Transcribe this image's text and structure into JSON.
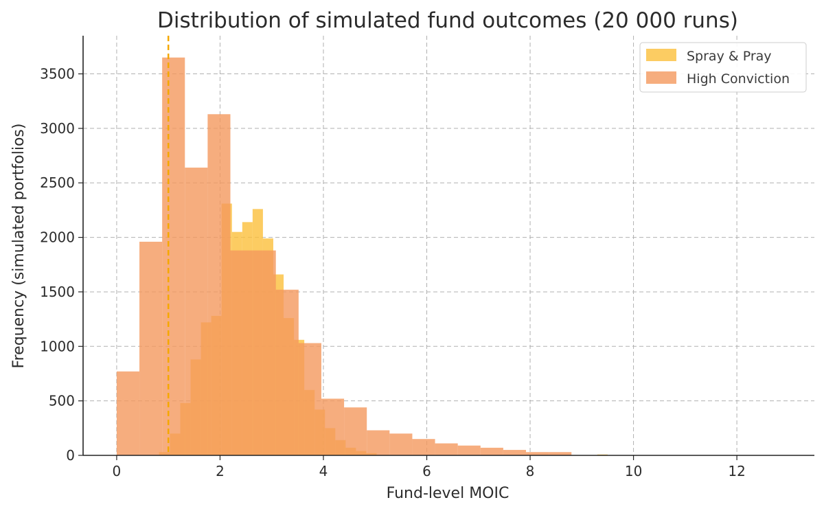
{
  "chart_data": {
    "type": "histogram",
    "title": "Distribution of simulated fund outcomes (20 000 runs)",
    "xlabel": "Fund-level MOIC",
    "ylabel": "Frequency (simulated portfolios)",
    "xlim": [
      -0.65,
      13.5
    ],
    "ylim": [
      0,
      3850
    ],
    "xticks": [
      0,
      2,
      4,
      6,
      8,
      10,
      12
    ],
    "yticks": [
      0,
      500,
      1000,
      1500,
      2000,
      2500,
      3000,
      3500
    ],
    "grid": true,
    "legend_position": "top-right",
    "reference_line": {
      "x": 1.0,
      "color": "#f5a800",
      "style": "dashed"
    },
    "series": [
      {
        "name": "Spray & Pray",
        "color": "#fbbf3b",
        "opacity": 0.8,
        "bins": [
          [
            0.82,
            0.99,
            30
          ],
          [
            0.99,
            1.03,
            30
          ],
          [
            1.03,
            1.23,
            200
          ],
          [
            1.23,
            1.43,
            480
          ],
          [
            1.43,
            1.63,
            880
          ],
          [
            1.63,
            1.83,
            1220
          ],
          [
            1.83,
            2.03,
            1280
          ],
          [
            2.03,
            2.23,
            2310
          ],
          [
            2.23,
            2.43,
            2050
          ],
          [
            2.43,
            2.63,
            2140
          ],
          [
            2.63,
            2.83,
            2260
          ],
          [
            2.83,
            3.03,
            1990
          ],
          [
            3.03,
            3.23,
            1660
          ],
          [
            3.23,
            3.43,
            1260
          ],
          [
            3.43,
            3.63,
            1060
          ],
          [
            3.63,
            3.83,
            600
          ],
          [
            3.83,
            4.03,
            420
          ],
          [
            4.03,
            4.23,
            250
          ],
          [
            4.23,
            4.43,
            140
          ],
          [
            4.43,
            4.63,
            70
          ],
          [
            4.63,
            4.83,
            40
          ],
          [
            4.83,
            5.03,
            20
          ],
          [
            9.3,
            9.5,
            8
          ]
        ]
      },
      {
        "name": "High Conviction",
        "color": "#f4995e",
        "opacity": 0.8,
        "bins": [
          [
            0.0,
            0.44,
            770
          ],
          [
            0.44,
            0.88,
            1960
          ],
          [
            0.88,
            1.32,
            3650
          ],
          [
            1.32,
            1.76,
            2640
          ],
          [
            1.76,
            2.2,
            3130
          ],
          [
            2.2,
            2.64,
            1880
          ],
          [
            2.64,
            3.08,
            1880
          ],
          [
            3.08,
            3.52,
            1520
          ],
          [
            3.52,
            3.96,
            1030
          ],
          [
            3.96,
            4.4,
            520
          ],
          [
            4.4,
            4.84,
            440
          ],
          [
            4.84,
            5.28,
            230
          ],
          [
            5.28,
            5.72,
            200
          ],
          [
            5.72,
            6.16,
            150
          ],
          [
            6.16,
            6.6,
            110
          ],
          [
            6.6,
            7.04,
            90
          ],
          [
            7.04,
            7.48,
            70
          ],
          [
            7.48,
            7.92,
            50
          ],
          [
            7.92,
            8.36,
            30
          ],
          [
            8.36,
            8.8,
            30
          ]
        ]
      }
    ]
  }
}
